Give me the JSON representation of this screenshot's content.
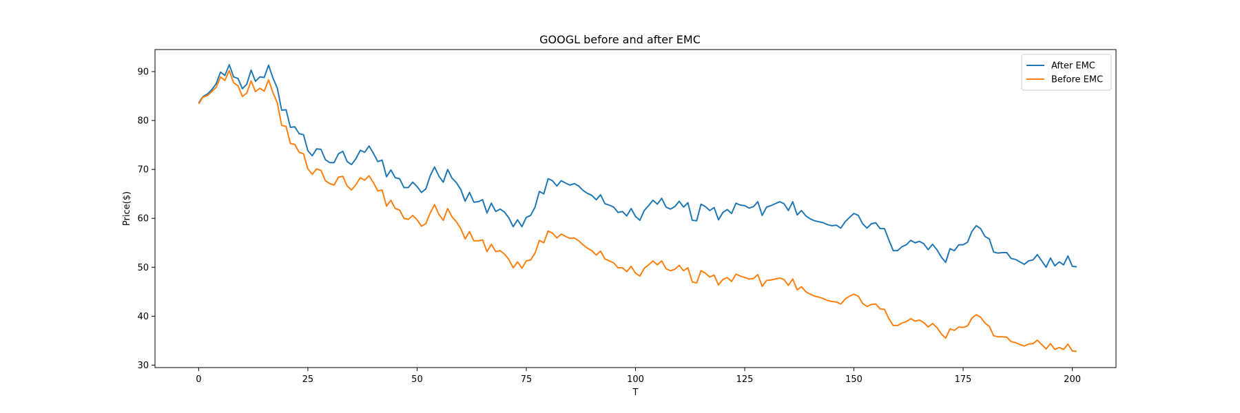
{
  "chart_data": {
    "type": "line",
    "title": "GOOGL before and after EMC",
    "xlabel": "T",
    "ylabel": "Price($)",
    "xlim": [
      -10,
      210
    ],
    "ylim": [
      29.5,
      94.5
    ],
    "xticks": [
      0,
      25,
      50,
      75,
      100,
      125,
      150,
      175,
      200
    ],
    "yticks": [
      30,
      40,
      50,
      60,
      70,
      80,
      90
    ],
    "grid": false,
    "legend_position": "top-right",
    "x": {
      "start": 0,
      "end": 200,
      "step": 1
    },
    "series": [
      {
        "name": "After EMC",
        "color": "#1f77b4",
        "values": [
          83.6,
          84.9,
          85.4,
          86.3,
          87.5,
          89.9,
          89.2,
          91.4,
          88.9,
          88.6,
          86.5,
          87.4,
          90.3,
          88.0,
          88.9,
          88.8,
          91.3,
          88.7,
          86.6,
          82.1,
          82.2,
          78.6,
          78.7,
          77.3,
          77.1,
          73.8,
          72.8,
          74.2,
          74.1,
          72.0,
          71.4,
          71.4,
          73.2,
          73.7,
          71.6,
          71.0,
          72.2,
          73.9,
          73.5,
          74.8,
          73.3,
          71.6,
          71.9,
          68.5,
          69.9,
          68.3,
          68.1,
          66.3,
          66.3,
          67.4,
          66.5,
          65.3,
          66.0,
          68.7,
          70.5,
          68.6,
          67.4,
          70.0,
          68.2,
          67.3,
          65.9,
          63.5,
          65.3,
          63.3,
          63.4,
          63.8,
          61.1,
          63.1,
          61.4,
          61.9,
          61.3,
          60.1,
          58.3,
          59.7,
          58.3,
          60.2,
          60.6,
          62.3,
          65.5,
          65.0,
          68.1,
          67.7,
          66.6,
          67.7,
          67.2,
          66.8,
          67.1,
          66.6,
          65.7,
          65.1,
          64.7,
          63.8,
          64.8,
          63.0,
          62.7,
          62.3,
          61.2,
          61.4,
          60.5,
          62.0,
          60.4,
          59.6,
          61.6,
          62.6,
          63.7,
          62.9,
          64.1,
          62.3,
          61.9,
          62.4,
          63.5,
          62.3,
          63.2,
          59.6,
          59.5,
          62.9,
          62.4,
          61.6,
          62.2,
          59.7,
          61.2,
          61.8,
          61.0,
          63.1,
          62.7,
          62.6,
          62.1,
          62.4,
          63.4,
          60.6,
          62.3,
          62.6,
          63.0,
          63.4,
          63.0,
          61.6,
          63.4,
          60.7,
          61.6,
          60.5,
          59.9,
          59.5,
          59.3,
          59.1,
          58.7,
          58.5,
          58.6,
          58.0,
          59.3,
          60.2,
          61.0,
          60.6,
          58.9,
          58.0,
          58.9,
          59.1,
          57.9,
          57.9,
          55.6,
          53.4,
          53.4,
          54.2,
          54.6,
          55.5,
          55.0,
          55.3,
          54.8,
          53.6,
          54.7,
          53.6,
          52.1,
          51.0,
          53.8,
          53.4,
          54.6,
          54.6,
          55.1,
          57.3,
          58.5,
          57.9,
          56.3,
          55.8,
          53.1,
          52.9,
          53.0,
          53.0,
          51.8,
          51.6,
          51.1,
          50.6,
          51.3,
          51.5,
          52.6,
          51.3,
          50.0,
          51.9,
          50.3,
          51.1,
          50.5,
          52.3,
          50.2,
          50.1
        ]
      },
      {
        "name": "Before EMC",
        "color": "#ff7f0e",
        "values": [
          83.4,
          84.8,
          85.1,
          85.9,
          86.8,
          88.9,
          88.2,
          90.2,
          87.7,
          87.1,
          84.9,
          85.6,
          88.1,
          85.9,
          86.6,
          86.0,
          88.3,
          85.7,
          83.6,
          79.0,
          78.8,
          75.3,
          75.1,
          73.5,
          73.2,
          70.1,
          69.0,
          70.1,
          69.8,
          67.7,
          67.1,
          66.8,
          68.4,
          68.6,
          66.6,
          65.8,
          66.9,
          68.3,
          67.8,
          68.7,
          67.3,
          65.6,
          65.8,
          62.5,
          63.7,
          62.0,
          61.7,
          60.0,
          59.8,
          60.6,
          59.7,
          58.4,
          58.9,
          61.1,
          62.8,
          60.8,
          59.6,
          62.0,
          60.3,
          59.3,
          57.9,
          55.8,
          57.3,
          55.4,
          55.4,
          55.6,
          53.2,
          54.7,
          53.2,
          53.4,
          52.7,
          51.6,
          49.9,
          51.1,
          49.8,
          51.3,
          51.5,
          52.9,
          55.5,
          55.0,
          57.4,
          57.0,
          56.0,
          56.8,
          56.3,
          55.9,
          56.0,
          55.4,
          54.6,
          53.9,
          53.4,
          52.5,
          53.3,
          51.7,
          51.3,
          50.9,
          49.9,
          49.9,
          49.1,
          50.2,
          48.8,
          48.2,
          49.8,
          50.5,
          51.3,
          50.5,
          51.3,
          49.7,
          49.3,
          49.6,
          50.4,
          49.3,
          49.9,
          47.0,
          46.8,
          49.3,
          48.8,
          48.0,
          48.4,
          46.4,
          47.5,
          47.9,
          47.1,
          48.6,
          48.2,
          47.9,
          47.6,
          47.7,
          48.5,
          46.1,
          47.3,
          47.4,
          47.6,
          47.8,
          47.5,
          46.3,
          47.6,
          45.4,
          46.0,
          45.0,
          44.5,
          44.1,
          43.9,
          43.6,
          43.2,
          43.0,
          42.9,
          42.5,
          43.5,
          44.1,
          44.5,
          44.1,
          42.6,
          42.0,
          42.4,
          42.5,
          41.5,
          41.4,
          39.5,
          38.1,
          38.1,
          38.6,
          38.9,
          39.5,
          39.0,
          39.2,
          38.7,
          37.8,
          38.5,
          37.7,
          36.4,
          35.5,
          37.4,
          37.1,
          37.8,
          37.7,
          38.0,
          39.6,
          40.3,
          39.8,
          38.6,
          37.9,
          36.0,
          35.8,
          35.8,
          35.7,
          34.8,
          34.6,
          34.2,
          33.9,
          34.3,
          34.4,
          35.1,
          34.2,
          33.3,
          34.4,
          33.2,
          33.6,
          33.2,
          34.3,
          32.9,
          32.8
        ]
      }
    ]
  }
}
